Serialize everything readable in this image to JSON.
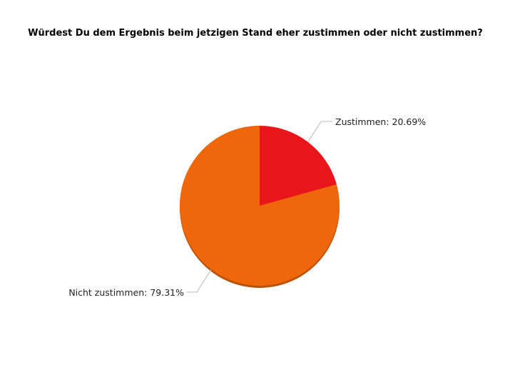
{
  "chart_data": {
    "type": "pie",
    "title": "Würdest Du dem Ergebnis beim jetzigen Stand eher zustimmen oder nicht zustimmen?",
    "slices": [
      {
        "label": "Zustimmen: 20.69%",
        "category": "Zustimmen",
        "value": 20.69,
        "color": "#e8161b"
      },
      {
        "label": "Nicht zustimmen: 79.31%",
        "category": "Nicht zustimmen",
        "value": 79.31,
        "color": "#f0660b"
      }
    ],
    "start_angle": "12 o'clock",
    "direction": "clockwise",
    "shadow": true
  }
}
